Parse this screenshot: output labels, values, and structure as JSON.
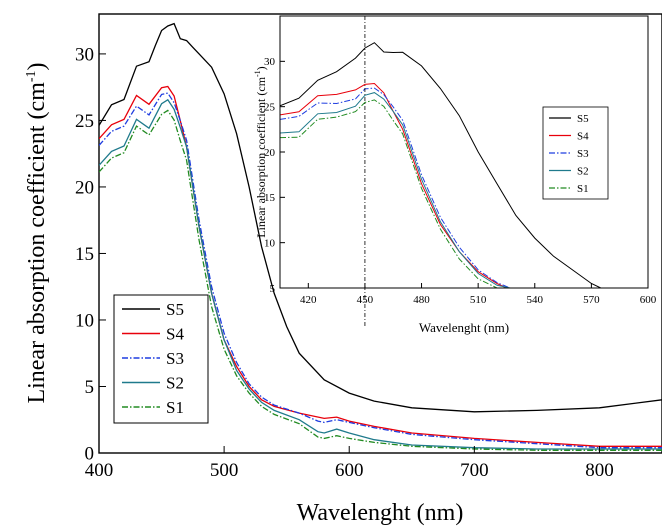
{
  "chart_data": [
    {
      "type": "line",
      "xlabel": "Wavelenght (nm)",
      "ylabel": "Linear absorption coefficient (cm",
      "ylabel_sup": "-1",
      "ylabel_close": ")",
      "xlim": [
        400,
        850
      ],
      "ylim": [
        0,
        33
      ],
      "xticks": [
        400,
        500,
        600,
        700,
        800
      ],
      "yticks": [
        0,
        5,
        10,
        15,
        20,
        25,
        30
      ],
      "legend": "bottom-left",
      "series": [
        {
          "name": "S5",
          "color": "#000000",
          "dash": "solid",
          "x": [
            400,
            410,
            420,
            430,
            440,
            445,
            450,
            455,
            460,
            465,
            470,
            475,
            480,
            490,
            500,
            510,
            520,
            530,
            540,
            550,
            560,
            580,
            600,
            620,
            650,
            700,
            750,
            800,
            850
          ],
          "y": [
            24.5,
            26.0,
            27.0,
            28.5,
            30.0,
            31.0,
            31.5,
            31.5,
            32.0,
            31.5,
            31.0,
            30.5,
            30.0,
            29.0,
            27.0,
            24.0,
            20.0,
            15.5,
            12.0,
            9.5,
            7.5,
            5.5,
            4.5,
            3.9,
            3.4,
            3.1,
            3.2,
            3.4,
            4.0
          ]
        },
        {
          "name": "S4",
          "color": "#e8000b",
          "dash": "solid",
          "x": [
            400,
            410,
            420,
            430,
            440,
            450,
            455,
            460,
            465,
            470,
            475,
            480,
            490,
            500,
            510,
            520,
            530,
            540,
            560,
            580,
            590,
            600,
            620,
            650,
            700,
            750,
            800,
            850
          ],
          "y": [
            23.5,
            24.5,
            25.5,
            26.3,
            26.8,
            27.0,
            27.0,
            26.8,
            25.5,
            23.0,
            20.0,
            17.0,
            12.0,
            8.5,
            6.5,
            5.0,
            4.0,
            3.5,
            3.0,
            2.6,
            2.7,
            2.4,
            2.0,
            1.5,
            1.1,
            0.8,
            0.5,
            0.5
          ]
        },
        {
          "name": "S3",
          "color": "#1f3de0",
          "dash": "dashdot",
          "x": [
            400,
            410,
            420,
            430,
            440,
            450,
            455,
            460,
            465,
            470,
            475,
            480,
            490,
            500,
            510,
            520,
            530,
            540,
            560,
            575,
            580,
            590,
            600,
            620,
            650,
            700,
            750,
            800,
            850
          ],
          "y": [
            23.0,
            24.0,
            25.0,
            25.5,
            26.0,
            26.5,
            26.5,
            26.3,
            25.5,
            23.5,
            20.5,
            17.5,
            12.5,
            9.0,
            6.8,
            5.2,
            4.2,
            3.6,
            3.0,
            2.4,
            2.3,
            2.5,
            2.3,
            1.9,
            1.4,
            1.0,
            0.7,
            0.4,
            0.4
          ]
        },
        {
          "name": "S2",
          "color": "#1f7a8c",
          "dash": "solid",
          "x": [
            400,
            410,
            420,
            430,
            440,
            450,
            455,
            460,
            465,
            470,
            475,
            480,
            490,
            500,
            510,
            520,
            530,
            540,
            560,
            575,
            580,
            590,
            600,
            620,
            650,
            700,
            750,
            800,
            850
          ],
          "y": [
            21.5,
            22.5,
            23.5,
            24.5,
            25.0,
            25.8,
            26.0,
            25.8,
            25.0,
            23.0,
            20.0,
            17.0,
            12.0,
            8.5,
            6.2,
            4.8,
            3.8,
            3.2,
            2.5,
            1.6,
            1.5,
            1.8,
            1.5,
            1.0,
            0.6,
            0.4,
            0.3,
            0.3,
            0.3
          ]
        },
        {
          "name": "S1",
          "color": "#228b22",
          "dash": "dashdot",
          "x": [
            400,
            410,
            420,
            430,
            440,
            450,
            455,
            460,
            465,
            470,
            475,
            480,
            490,
            500,
            510,
            520,
            530,
            540,
            560,
            575,
            580,
            590,
            600,
            620,
            650,
            700,
            750,
            800,
            850
          ],
          "y": [
            21.0,
            22.0,
            23.0,
            24.0,
            24.5,
            25.0,
            25.2,
            25.0,
            24.0,
            22.0,
            19.0,
            16.0,
            11.0,
            7.8,
            5.8,
            4.5,
            3.5,
            2.9,
            2.2,
            1.2,
            1.1,
            1.3,
            1.1,
            0.8,
            0.5,
            0.3,
            0.2,
            0.2,
            0.2
          ]
        }
      ]
    },
    {
      "type": "line",
      "xlabel": "Wavelenght (nm)",
      "ylabel": "Linear absorption coefficient (cm",
      "ylabel_sup": "-1",
      "ylabel_close": ")",
      "xlim": [
        405,
        600
      ],
      "ylim": [
        5,
        35
      ],
      "xticks": [
        420,
        450,
        480,
        510,
        540,
        570,
        600
      ],
      "yticks": [
        5,
        10,
        15,
        20,
        25,
        30
      ],
      "vline": 450,
      "legend": "top-right",
      "series": [
        {
          "name": "S5",
          "color": "#000000",
          "dash": "solid",
          "x": [
            405,
            415,
            425,
            435,
            445,
            450,
            455,
            460,
            465,
            470,
            480,
            490,
            500,
            510,
            520,
            530,
            540,
            550,
            560,
            570,
            575
          ],
          "y": [
            24.5,
            26.5,
            27.5,
            29.0,
            30.5,
            31.0,
            31.5,
            31.0,
            31.5,
            31.0,
            29.5,
            27.0,
            24.0,
            20.0,
            16.5,
            13.0,
            10.5,
            8.5,
            7.0,
            5.5,
            5.0
          ]
        },
        {
          "name": "S4",
          "color": "#e8000b",
          "dash": "solid",
          "x": [
            405,
            415,
            425,
            435,
            445,
            450,
            455,
            460,
            465,
            470,
            475,
            480,
            490,
            500,
            510,
            520,
            525
          ],
          "y": [
            23.5,
            25.0,
            25.8,
            26.5,
            27.0,
            27.0,
            27.0,
            26.5,
            25.0,
            22.5,
            19.5,
            16.5,
            12.0,
            9.0,
            6.8,
            5.5,
            5.0
          ]
        },
        {
          "name": "S3",
          "color": "#1f3de0",
          "dash": "dashdot",
          "x": [
            405,
            415,
            425,
            435,
            445,
            450,
            455,
            460,
            465,
            470,
            475,
            480,
            490,
            500,
            510,
            520,
            527
          ],
          "y": [
            23.0,
            24.5,
            25.0,
            25.5,
            26.0,
            26.5,
            26.5,
            26.3,
            25.5,
            23.5,
            20.5,
            17.5,
            12.8,
            9.5,
            7.0,
            5.6,
            5.0
          ]
        },
        {
          "name": "S2",
          "color": "#1f7a8c",
          "dash": "solid",
          "x": [
            405,
            415,
            425,
            435,
            445,
            450,
            455,
            460,
            465,
            470,
            475,
            480,
            490,
            500,
            510,
            520,
            527
          ],
          "y": [
            21.5,
            22.8,
            23.8,
            24.5,
            25.2,
            25.8,
            26.0,
            25.8,
            25.0,
            23.0,
            20.0,
            17.0,
            12.3,
            9.0,
            6.6,
            5.3,
            5.0
          ]
        },
        {
          "name": "S1",
          "color": "#228b22",
          "dash": "dashdot",
          "x": [
            405,
            415,
            425,
            435,
            445,
            450,
            455,
            460,
            465,
            470,
            475,
            480,
            490,
            500,
            510,
            520
          ],
          "y": [
            21.0,
            22.2,
            23.2,
            24.0,
            24.6,
            25.0,
            25.2,
            25.0,
            24.0,
            22.0,
            19.0,
            16.0,
            11.5,
            8.2,
            6.0,
            5.0
          ]
        }
      ]
    }
  ]
}
